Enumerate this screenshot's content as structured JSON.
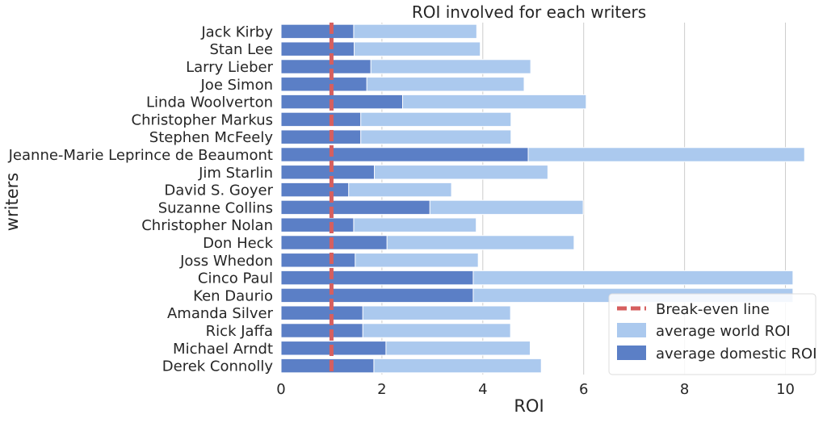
{
  "chart_data": {
    "type": "bar",
    "orientation": "horizontal",
    "title": "ROI involved for each writers",
    "xlabel": "ROI",
    "ylabel": "writers",
    "xlim": [
      0,
      10.6
    ],
    "xticks": [
      0,
      2,
      4,
      6,
      8,
      10
    ],
    "grid": "vertical",
    "legend_placement": "lower-right",
    "categories": [
      "Jack Kirby",
      "Stan Lee",
      "Larry Lieber",
      "Joe Simon",
      "Linda Woolverton",
      "Christopher Markus",
      "Stephen McFeely",
      "Jeanne-Marie Leprince de Beaumont",
      "Jim Starlin",
      "David S. Goyer",
      "Suzanne Collins",
      "Christopher Nolan",
      "Don Heck",
      "Joss Whedon",
      "Cinco Paul",
      "Ken Daurio",
      "Amanda Silver",
      "Rick Jaffa",
      "Michael Arndt",
      "Derek Connolly"
    ],
    "series": [
      {
        "name": "average world ROI",
        "color": "#abc9ee",
        "values": [
          3.88,
          3.95,
          4.95,
          4.82,
          6.05,
          4.56,
          4.56,
          10.38,
          5.29,
          3.38,
          5.99,
          3.87,
          5.81,
          3.91,
          10.15,
          10.15,
          4.55,
          4.55,
          4.94,
          5.16
        ]
      },
      {
        "name": "average domestic ROI",
        "color": "#5b7fc6",
        "values": [
          1.44,
          1.45,
          1.78,
          1.7,
          2.41,
          1.58,
          1.58,
          4.9,
          1.85,
          1.34,
          2.95,
          1.44,
          2.1,
          1.47,
          3.81,
          3.81,
          1.62,
          1.62,
          2.08,
          1.84
        ]
      }
    ],
    "reference_line": {
      "name": "Break-even line",
      "value": 1.0,
      "color": "#d65f5f",
      "style": "dashed"
    }
  }
}
